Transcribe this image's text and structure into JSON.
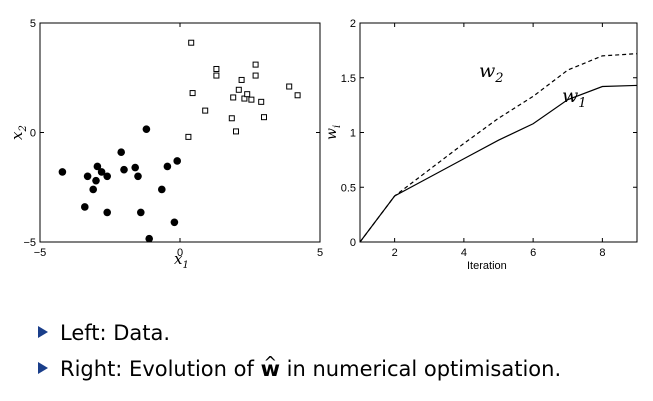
{
  "chart_data": [
    {
      "type": "scatter",
      "title": "",
      "xlabel": "x1",
      "xlabel_sub": "1",
      "ylabel": "x2",
      "ylabel_sub": "2",
      "xlim": [
        -5,
        5
      ],
      "ylim": [
        -5,
        5
      ],
      "xticks": [
        "−5",
        "0",
        "5"
      ],
      "yticks": [
        "5",
        "0",
        "−5"
      ],
      "grid": false,
      "series": [
        {
          "marker": "filled-circle",
          "color": "#000000",
          "points": [
            [
              -4.2,
              -1.8
            ],
            [
              -3.3,
              -2.0
            ],
            [
              -3.4,
              -3.4
            ],
            [
              -3.1,
              -2.6
            ],
            [
              -3.0,
              -2.2
            ],
            [
              -2.95,
              -1.55
            ],
            [
              -2.8,
              -1.8
            ],
            [
              -2.6,
              -2.0
            ],
            [
              -2.6,
              -3.65
            ],
            [
              -2.1,
              -0.9
            ],
            [
              -2.0,
              -1.7
            ],
            [
              -1.6,
              -1.6
            ],
            [
              -1.5,
              -2.0
            ],
            [
              -1.4,
              -3.65
            ],
            [
              -1.2,
              0.15
            ],
            [
              -1.1,
              -4.85
            ],
            [
              -0.65,
              -2.6
            ],
            [
              -0.45,
              -1.55
            ],
            [
              -0.2,
              -4.1
            ],
            [
              -0.1,
              -1.3
            ]
          ]
        },
        {
          "marker": "open-square",
          "color": "#000000",
          "points": [
            [
              0.3,
              -0.2
            ],
            [
              0.4,
              4.1
            ],
            [
              0.45,
              1.8
            ],
            [
              0.9,
              1.0
            ],
            [
              1.3,
              2.9
            ],
            [
              1.3,
              2.6
            ],
            [
              1.85,
              0.65
            ],
            [
              1.9,
              1.6
            ],
            [
              2.0,
              0.05
            ],
            [
              2.1,
              1.95
            ],
            [
              2.2,
              2.4
            ],
            [
              2.3,
              1.55
            ],
            [
              2.4,
              1.75
            ],
            [
              2.55,
              1.5
            ],
            [
              2.7,
              3.1
            ],
            [
              2.7,
              2.6
            ],
            [
              2.9,
              1.4
            ],
            [
              3.0,
              0.7
            ],
            [
              3.9,
              2.1
            ],
            [
              4.2,
              1.7
            ]
          ]
        }
      ]
    },
    {
      "type": "line",
      "title": "",
      "xlabel": "Iteration",
      "ylabel": "wi",
      "ylabel_sub": "i",
      "xlim": [
        1,
        9
      ],
      "ylim": [
        0,
        2
      ],
      "xticks": [
        "2",
        "4",
        "6",
        "8"
      ],
      "yticks": [
        "0",
        "0.5",
        "1",
        "1.5",
        "2"
      ],
      "grid": false,
      "series": [
        {
          "name": "w1",
          "name_sub": "1",
          "style": "solid",
          "x": [
            1,
            2,
            3,
            4,
            5,
            6,
            7,
            8,
            9
          ],
          "y": [
            0.0,
            0.42,
            0.59,
            0.76,
            0.93,
            1.08,
            1.3,
            1.42,
            1.43
          ]
        },
        {
          "name": "w2",
          "name_sub": "2",
          "style": "dashed",
          "x": [
            1,
            2,
            3,
            4,
            5,
            6,
            7,
            8,
            9
          ],
          "y": [
            0.0,
            0.42,
            0.66,
            0.9,
            1.13,
            1.33,
            1.57,
            1.7,
            1.72
          ]
        }
      ]
    }
  ],
  "bullets": {
    "item1": "Left: Data.",
    "item2_before": "Right: Evolution of",
    "item2_symbol": "w",
    "item2_hat": "^",
    "item2_after": "in numerical optimisation."
  },
  "colors": {
    "bullet_marker": "#1a3e8a",
    "ink": "#000000"
  }
}
